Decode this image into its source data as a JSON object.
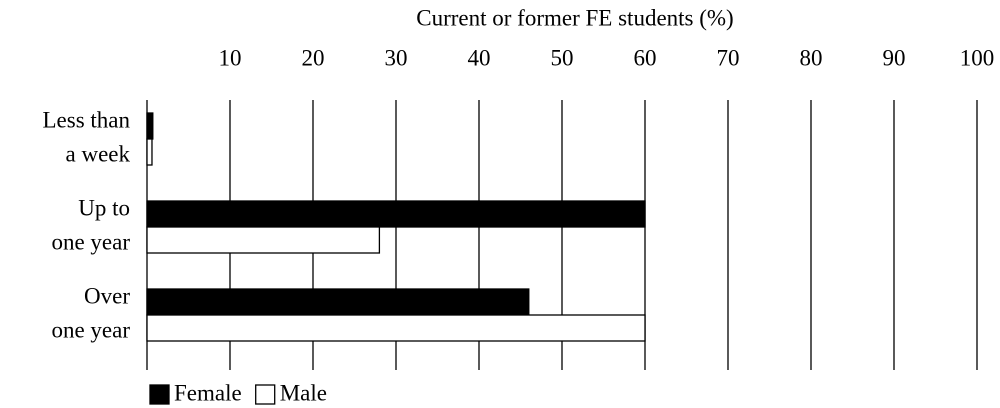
{
  "chart_data": {
    "type": "bar",
    "orientation": "horizontal",
    "title": "Current or former FE students (%)",
    "categories": [
      [
        "Less than",
        "a week"
      ],
      [
        "Up to",
        "one year"
      ],
      [
        "Over",
        "one year"
      ]
    ],
    "series": [
      {
        "name": "Female",
        "color": "#000000",
        "values": [
          0.7,
          60,
          46
        ]
      },
      {
        "name": "Male",
        "color": "#ffffff",
        "values": [
          0.6,
          28,
          60
        ]
      }
    ],
    "xlim": [
      0,
      100
    ],
    "xticks": [
      10,
      20,
      30,
      40,
      50,
      60,
      70,
      80,
      90,
      100
    ],
    "grid": true,
    "legend": "bottom-left"
  }
}
